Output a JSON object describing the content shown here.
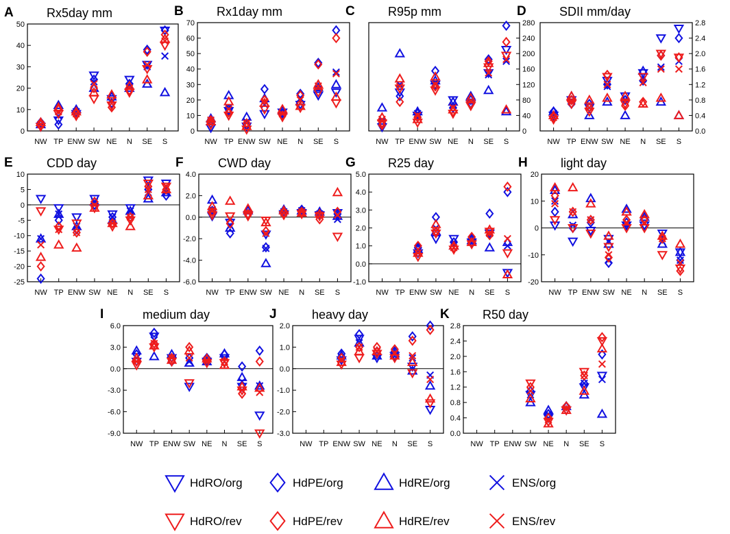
{
  "colors": {
    "org": "#1010e0",
    "rev": "#ee1c1c",
    "axis": "#000000"
  },
  "legend": [
    {
      "label": "HdRO/org",
      "marker": "triangle-down-icon",
      "color": "#1010e0"
    },
    {
      "label": "HdPE/org",
      "marker": "diamond-icon",
      "color": "#1010e0"
    },
    {
      "label": "HdRE/org",
      "marker": "triangle-up-icon",
      "color": "#1010e0"
    },
    {
      "label": "ENS/org",
      "marker": "cross-icon",
      "color": "#1010e0"
    },
    {
      "label": "HdRO/rev",
      "marker": "triangle-down-icon",
      "color": "#ee1c1c"
    },
    {
      "label": "HdPE/rev",
      "marker": "diamond-icon",
      "color": "#ee1c1c"
    },
    {
      "label": "HdRE/rev",
      "marker": "triangle-up-icon",
      "color": "#ee1c1c"
    },
    {
      "label": "ENS/rev",
      "marker": "cross-icon",
      "color": "#ee1c1c"
    }
  ],
  "chart_data": [
    {
      "panel": "A",
      "type": "scatter",
      "title": "Rx5day mm",
      "categories": [
        "NW",
        "TP",
        "ENW",
        "SW",
        "NE",
        "N",
        "SE",
        "S"
      ],
      "ylim": [
        0,
        50
      ],
      "yticks": [
        "0",
        "10",
        "20",
        "30",
        "40",
        "50"
      ],
      "ytick_side": "left",
      "zero_line": false,
      "series": {
        "HdRO/org": [
          2,
          5,
          8,
          26,
          15,
          24,
          31,
          47
        ],
        "HdPE/org": [
          4,
          3,
          9,
          24,
          13,
          22,
          38,
          47
        ],
        "HdRE/org": [
          3,
          12,
          10,
          20,
          16,
          20,
          22,
          18
        ],
        "ENS/org": [
          3,
          7,
          9,
          23,
          14,
          21,
          30,
          35
        ],
        "HdRO/rev": [
          2,
          8,
          7,
          15,
          12,
          18,
          29,
          40
        ],
        "HdPE/rev": [
          3,
          10,
          8,
          20,
          11,
          19,
          37,
          45
        ],
        "HdRE/rev": [
          4,
          11,
          9,
          18,
          17,
          21,
          24,
          43
        ],
        "ENS/rev": [
          3,
          9,
          8,
          22,
          14,
          20,
          31,
          42
        ]
      }
    },
    {
      "panel": "B",
      "type": "scatter",
      "title": "Rx1day mm",
      "categories": [
        "NW",
        "TP",
        "ENW",
        "SW",
        "NE",
        "N",
        "SE",
        "S"
      ],
      "ylim": [
        0,
        70
      ],
      "yticks": [
        "0",
        "10",
        "20",
        "30",
        "40",
        "50",
        "60",
        "70"
      ],
      "ytick_side": "left",
      "zero_line": false,
      "series": {
        "HdRO/org": [
          2,
          13,
          3,
          11,
          12,
          17,
          23,
          25
        ],
        "HdPE/org": [
          5,
          14,
          4,
          27,
          11,
          24,
          44,
          65
        ],
        "HdRE/org": [
          8,
          23,
          9,
          21,
          13,
          19,
          28,
          30
        ],
        "ENS/org": [
          6,
          15,
          6,
          17,
          12,
          21,
          27,
          38
        ],
        "HdRO/rev": [
          4,
          10,
          1,
          14,
          9,
          15,
          25,
          18
        ],
        "HdPE/rev": [
          7,
          12,
          5,
          20,
          10,
          23,
          43,
          60
        ],
        "HdRE/rev": [
          6,
          19,
          3,
          18,
          14,
          16,
          30,
          22
        ],
        "ENS/rev": [
          7,
          14,
          5,
          19,
          11,
          20,
          29,
          37
        ]
      }
    },
    {
      "panel": "C",
      "type": "scatter",
      "title": "R95p mm",
      "categories": [
        "NW",
        "TP",
        "ENW",
        "SW",
        "NE",
        "N",
        "SE",
        "S"
      ],
      "ylim": [
        0,
        280
      ],
      "yticks": [
        "0",
        "40",
        "80",
        "120",
        "160",
        "200",
        "240",
        "280"
      ],
      "ytick_side": "right",
      "zero_line": false,
      "series": {
        "HdRO/org": [
          10,
          100,
          40,
          120,
          80,
          70,
          150,
          210
        ],
        "HdPE/org": [
          20,
          90,
          45,
          155,
          60,
          80,
          185,
          272
        ],
        "HdRE/org": [
          60,
          200,
          50,
          130,
          75,
          90,
          105,
          50
        ],
        "ENS/org": [
          25,
          120,
          45,
          125,
          65,
          75,
          145,
          180
        ],
        "HdRO/rev": [
          20,
          110,
          22,
          105,
          45,
          65,
          165,
          195
        ],
        "HdPE/rev": [
          15,
          75,
          35,
          115,
          50,
          70,
          180,
          230
        ],
        "HdRE/rev": [
          35,
          135,
          30,
          140,
          55,
          85,
          175,
          55
        ],
        "ENS/rev": [
          30,
          115,
          40,
          120,
          60,
          78,
          150,
          185
        ]
      }
    },
    {
      "panel": "D",
      "type": "scatter",
      "title": "SDII mm/day",
      "categories": [
        "NW",
        "TP",
        "ENW",
        "SW",
        "NE",
        "N",
        "SE",
        "S"
      ],
      "ylim": [
        0,
        2.8
      ],
      "yticks": [
        "0.0",
        "0.4",
        "0.8",
        "1.2",
        "1.6",
        "2.0",
        "2.4",
        "2.8"
      ],
      "ytick_side": "right",
      "zero_line": false,
      "series": {
        "HdRO/org": [
          0.4,
          0.8,
          0.6,
          1.3,
          0.9,
          1.5,
          2.4,
          2.65
        ],
        "HdPE/org": [
          0.5,
          0.7,
          0.7,
          1.2,
          0.8,
          1.3,
          1.95,
          2.4
        ],
        "HdRE/org": [
          0.5,
          0.9,
          0.4,
          0.75,
          0.4,
          1.55,
          0.75,
          0.4
        ],
        "ENS/org": [
          0.45,
          0.75,
          0.6,
          1.15,
          0.75,
          1.35,
          1.65,
          1.8
        ],
        "HdRO/rev": [
          0.3,
          0.7,
          0.5,
          1.4,
          0.7,
          1.4,
          2.0,
          1.9
        ],
        "HdPE/rev": [
          0.35,
          0.8,
          0.6,
          1.45,
          0.65,
          0.75,
          1.95,
          1.9
        ],
        "HdRE/rev": [
          0.4,
          0.9,
          0.8,
          0.85,
          0.9,
          0.7,
          0.85,
          0.4
        ],
        "ENS/rev": [
          0.35,
          0.75,
          0.6,
          1.2,
          0.75,
          1.25,
          1.6,
          1.6
        ]
      }
    },
    {
      "panel": "E",
      "type": "scatter",
      "title": "CDD day",
      "categories": [
        "NW",
        "TP",
        "ENW",
        "SW",
        "NE",
        "N",
        "SE",
        "S"
      ],
      "ylim": [
        -25,
        10
      ],
      "yticks": [
        "-25",
        "-20",
        "-15",
        "-10",
        "-5",
        "0",
        "5",
        "10"
      ],
      "ytick_side": "left",
      "zero_line": true,
      "series": {
        "HdRO/org": [
          2,
          -1,
          -4,
          2,
          -3,
          -1,
          8,
          7
        ],
        "HdPE/org": [
          -24,
          -5,
          -8,
          0,
          -4,
          -3,
          5,
          3
        ],
        "HdRE/org": [
          -11,
          -3,
          -7,
          1,
          -5,
          -2,
          2,
          4
        ],
        "ENS/org": [
          -11,
          -3,
          -7,
          1,
          -4,
          -2,
          4,
          4
        ],
        "HdRO/rev": [
          -2,
          -8,
          -6,
          -1,
          -7,
          -5,
          7,
          6
        ],
        "HdPE/rev": [
          -20,
          -7,
          -9,
          1,
          -6,
          -4,
          6,
          5
        ],
        "HdRE/rev": [
          -17,
          -13,
          -14,
          -1,
          -6,
          -7,
          3,
          5
        ],
        "ENS/rev": [
          -13,
          -8,
          -9,
          0,
          -6,
          -4,
          5,
          6
        ]
      }
    },
    {
      "panel": "F",
      "type": "scatter",
      "title": "CWD day",
      "categories": [
        "NW",
        "TP",
        "ENW",
        "SW",
        "NE",
        "N",
        "SE",
        "S"
      ],
      "ylim": [
        -6,
        4
      ],
      "yticks": [
        "-6.0",
        "-4.0",
        "-2.0",
        "0.0",
        "2.0",
        "4.0"
      ],
      "ytick_side": "left",
      "zero_line": true,
      "series": {
        "HdRO/org": [
          0.1,
          -0.5,
          0.2,
          -1.6,
          0.3,
          0.4,
          0.2,
          0.4
        ],
        "HdPE/org": [
          0.6,
          -1.5,
          0.3,
          -2.8,
          0.5,
          0.7,
          0.4,
          0.3
        ],
        "HdRE/org": [
          1.6,
          -1.0,
          0.6,
          -4.3,
          0.7,
          0.6,
          0.5,
          0.1
        ],
        "ENS/org": [
          0.7,
          -0.8,
          0.4,
          -2.9,
          0.5,
          0.6,
          0.3,
          -0.2
        ],
        "HdRO/rev": [
          0.2,
          0.1,
          0.1,
          -0.3,
          0.2,
          0.3,
          0.1,
          -1.8
        ],
        "HdPE/rev": [
          0.5,
          -0.6,
          0.3,
          -1.3,
          0.4,
          0.5,
          -0.2,
          0.5
        ],
        "HdRE/rev": [
          1.0,
          1.5,
          0.8,
          -0.5,
          0.6,
          0.4,
          0.3,
          2.3
        ],
        "ENS/rev": [
          0.6,
          -0.2,
          0.4,
          -1.5,
          0.4,
          0.5,
          0.2,
          0.2
        ]
      }
    },
    {
      "panel": "G",
      "type": "scatter",
      "title": "R25 day",
      "categories": [
        "NW",
        "TP",
        "ENW",
        "SW",
        "NE",
        "N",
        "SE",
        "S"
      ],
      "ylim": [
        -1,
        5
      ],
      "yticks": [
        "-1.0",
        "0.0",
        "1.0",
        "2.0",
        "3.0",
        "4.0",
        "5.0"
      ],
      "ytick_side": "left",
      "zero_line": true,
      "series": {
        "HdRO/org": [
          null,
          null,
          0.6,
          1.4,
          1.4,
          1.2,
          1.7,
          -0.5
        ],
        "HdPE/org": [
          null,
          null,
          0.9,
          2.6,
          1.2,
          1.4,
          2.8,
          4.0
        ],
        "HdRE/org": [
          null,
          null,
          0.8,
          1.8,
          1.0,
          1.3,
          0.9,
          1.2
        ],
        "ENS/org": [
          null,
          null,
          0.7,
          2.0,
          1.1,
          1.3,
          1.7,
          1.0
        ],
        "HdRO/rev": [
          null,
          null,
          0.4,
          1.7,
          0.8,
          1.1,
          1.8,
          0.6
        ],
        "HdPE/rev": [
          null,
          null,
          1.0,
          1.8,
          0.9,
          1.5,
          1.6,
          4.3
        ],
        "HdRE/rev": [
          null,
          null,
          0.6,
          2.2,
          1.0,
          1.2,
          1.9,
          -0.6
        ],
        "ENS/rev": [
          null,
          null,
          0.6,
          1.8,
          0.9,
          1.3,
          1.7,
          1.4
        ]
      }
    },
    {
      "panel": "H",
      "type": "scatter",
      "title": "light day",
      "categories": [
        "NW",
        "TP",
        "ENW",
        "SW",
        "NE",
        "N",
        "SE",
        "S"
      ],
      "ylim": [
        -20,
        20
      ],
      "yticks": [
        "-20",
        "-10",
        "0",
        "10",
        "20"
      ],
      "ytick_side": "left",
      "zero_line": true,
      "series": {
        "HdRO/org": [
          1,
          -5,
          -1,
          -4,
          1,
          1,
          -2,
          -9
        ],
        "HdPE/org": [
          6,
          0,
          2,
          -13,
          2,
          3,
          -4,
          -12
        ],
        "HdRE/org": [
          14,
          5,
          11,
          -6,
          7,
          4,
          -6,
          -9
        ],
        "ENS/org": [
          10,
          1,
          3,
          -12,
          2,
          2,
          -5,
          -12
        ],
        "HdRO/rev": [
          3,
          0,
          -2,
          -7,
          0,
          0,
          -10,
          -15
        ],
        "HdPE/rev": [
          12,
          6,
          3,
          -11,
          3,
          3,
          -4,
          -16
        ],
        "HdRE/rev": [
          15,
          15,
          9,
          -3,
          6,
          5,
          -3,
          -6
        ],
        "ENS/rev": [
          9,
          6,
          3,
          -10,
          2,
          2,
          -4,
          -13
        ]
      }
    },
    {
      "panel": "I",
      "type": "scatter",
      "title": "medium day",
      "categories": [
        "NW",
        "TP",
        "ENW",
        "SW",
        "NE",
        "N",
        "SE",
        "S"
      ],
      "ylim": [
        -9,
        6
      ],
      "yticks": [
        "-9.0",
        "-6.0",
        "-3.0",
        "0.0",
        "3.0",
        "6.0"
      ],
      "ytick_side": "left",
      "zero_line": true,
      "series": {
        "HdRO/org": [
          1.0,
          4.5,
          1.5,
          -2.5,
          1.0,
          1.5,
          -2.5,
          -6.5
        ],
        "HdPE/org": [
          2.0,
          5.0,
          1.0,
          1.5,
          1.5,
          2.0,
          0.3,
          2.5
        ],
        "HdRE/org": [
          2.5,
          1.7,
          2.0,
          0.8,
          1.0,
          2.1,
          -1.2,
          -2.4
        ],
        "ENS/org": [
          1.5,
          4.0,
          1.5,
          1.0,
          1.2,
          1.5,
          -1.8,
          -2.4
        ],
        "HdRO/rev": [
          0.5,
          3.0,
          1.0,
          -2.0,
          0.8,
          0.8,
          -3.0,
          -9.0
        ],
        "HdPE/rev": [
          1.0,
          3.5,
          1.5,
          3.0,
          1.3,
          1.0,
          -3.5,
          1.0
        ],
        "HdRE/rev": [
          1.5,
          3.2,
          1.2,
          2.5,
          1.4,
          0.5,
          -2.5,
          -2.7
        ],
        "ENS/rev": [
          1.0,
          3.5,
          1.5,
          1.5,
          1.2,
          1.0,
          -3.0,
          -3.3
        ]
      }
    },
    {
      "panel": "J",
      "type": "scatter",
      "title": "heavy day",
      "categories": [
        "NW",
        "TP",
        "ENW",
        "SW",
        "NE",
        "N",
        "SE",
        "S"
      ],
      "ylim": [
        -3,
        2
      ],
      "yticks": [
        "-3.0",
        "-2.0",
        "-1.0",
        "0.0",
        "1.0",
        "2.0"
      ],
      "ytick_side": "left",
      "zero_line": true,
      "series": {
        "HdRO/org": [
          null,
          null,
          0.4,
          1.4,
          0.5,
          0.6,
          0.1,
          -1.9
        ],
        "HdPE/org": [
          null,
          null,
          0.7,
          1.6,
          0.8,
          0.8,
          1.5,
          2.0
        ],
        "HdRE/org": [
          null,
          null,
          0.6,
          1.2,
          0.6,
          0.7,
          -0.1,
          -0.8
        ],
        "ENS/org": [
          null,
          null,
          0.5,
          1.2,
          0.6,
          0.7,
          0.5,
          -0.3
        ],
        "HdRO/rev": [
          null,
          null,
          0.2,
          0.5,
          0.7,
          0.5,
          -0.2,
          -1.6
        ],
        "HdPE/rev": [
          null,
          null,
          0.5,
          1.0,
          1.0,
          0.9,
          1.3,
          1.8
        ],
        "HdRE/rev": [
          null,
          null,
          0.3,
          0.8,
          0.8,
          0.6,
          0.3,
          -1.4
        ],
        "ENS/rev": [
          null,
          null,
          0.4,
          1.0,
          0.8,
          0.7,
          0.6,
          -0.5
        ]
      }
    },
    {
      "panel": "K",
      "type": "scatter",
      "title": "R50 day",
      "categories": [
        "NW",
        "TP",
        "ENW",
        "SW",
        "NE",
        "N",
        "SE",
        "S"
      ],
      "ylim": [
        0,
        2.8
      ],
      "yticks": [
        "0.0",
        "0.4",
        "0.8",
        "1.2",
        "1.6",
        "2.0",
        "2.4",
        "2.8"
      ],
      "ytick_side": "left",
      "zero_line": false,
      "series": {
        "HdRO/org": [
          null,
          null,
          null,
          1.0,
          0.4,
          0.6,
          1.2,
          1.5
        ],
        "HdPE/org": [
          null,
          null,
          null,
          1.1,
          0.5,
          0.7,
          1.3,
          2.05
        ],
        "HdRE/org": [
          null,
          null,
          null,
          0.8,
          0.6,
          0.7,
          1.0,
          0.5
        ],
        "ENS/org": [
          null,
          null,
          null,
          1.0,
          0.5,
          0.65,
          1.3,
          1.4
        ],
        "HdRO/rev": [
          null,
          null,
          null,
          1.3,
          0.3,
          0.6,
          1.6,
          2.4
        ],
        "HdPE/rev": [
          null,
          null,
          null,
          1.2,
          0.4,
          0.7,
          1.5,
          2.5
        ],
        "HdRE/rev": [
          null,
          null,
          null,
          0.9,
          0.25,
          0.6,
          1.1,
          2.2
        ],
        "ENS/rev": [
          null,
          null,
          null,
          1.1,
          0.35,
          0.65,
          1.5,
          1.8
        ]
      }
    }
  ]
}
